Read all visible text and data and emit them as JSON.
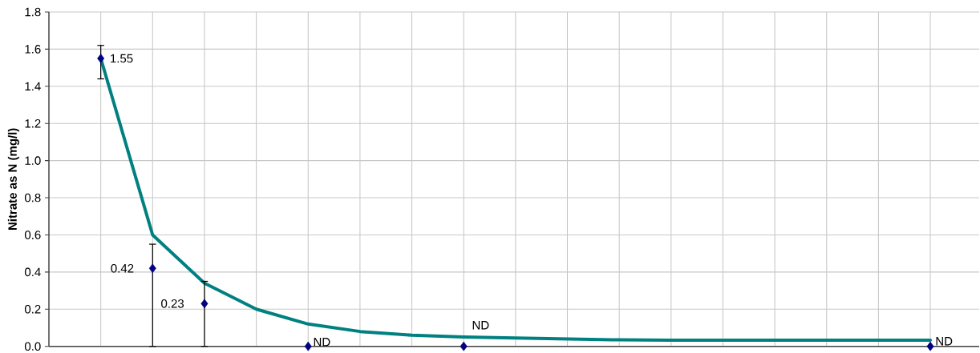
{
  "chart_data": {
    "type": "line",
    "ylabel": "Nitrate as N (mg/l)",
    "categories": [
      null,
      null,
      null,
      null,
      null,
      null,
      null,
      null,
      null,
      null,
      null,
      null,
      null,
      null,
      null,
      null,
      null
    ],
    "series": [
      {
        "type": "line",
        "color": "#008080",
        "marker": "none",
        "line_style": "solid",
        "values": [
          1.55,
          0.6,
          0.34,
          0.2,
          0.12,
          0.08,
          0.06,
          0.05,
          0.045,
          0.04,
          0.035,
          0.033,
          0.033,
          0.033,
          0.033,
          0.033,
          0.033
        ]
      },
      {
        "type": "scatter",
        "color": "#000080",
        "marker": "diamond",
        "values": [
          1.55,
          0.42,
          0.23,
          null,
          0,
          null,
          null,
          0,
          null,
          null,
          null,
          null,
          null,
          null,
          null,
          null,
          0
        ],
        "errors": [
          [
            1.44,
            1.62
          ],
          [
            0,
            0.55
          ],
          [
            0,
            0.35
          ],
          null,
          null,
          null,
          null,
          null,
          null,
          null,
          null,
          null,
          null,
          null,
          null,
          null,
          null
        ],
        "value_labels": [
          "1.55",
          "0.42",
          "0.23",
          null,
          "ND",
          null,
          null,
          "ND",
          null,
          null,
          null,
          null,
          null,
          null,
          null,
          null,
          "ND"
        ]
      }
    ],
    "ylim": [
      0,
      1.8
    ],
    "yticks": [
      {
        "value": 0,
        "label": "0.0"
      },
      0.2,
      0.4,
      0.6,
      0.8,
      {
        "value": 1,
        "label": "1.0"
      },
      1.2,
      1.4,
      1.6,
      1.8
    ],
    "grid": true,
    "tick_labels": "y"
  }
}
